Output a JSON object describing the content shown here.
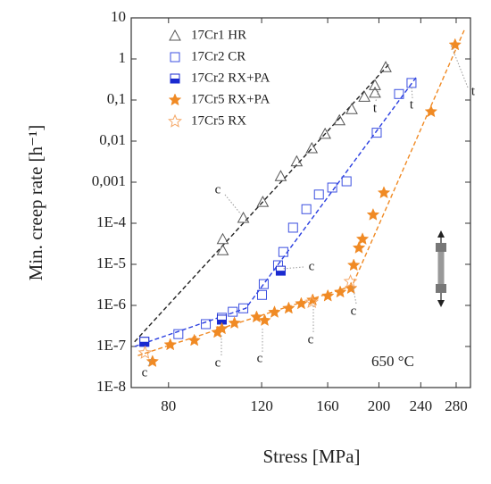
{
  "chart_data": {
    "type": "scatter",
    "x_label": "Stress [MPa]",
    "y_label": "Min. creep rate [h⁻¹]",
    "log_x": true,
    "log_y": true,
    "xlim": [
      68,
      298
    ],
    "ylim": [
      1e-08,
      10
    ],
    "xticks": [
      80,
      120,
      160,
      200,
      240,
      280
    ],
    "yticks": [
      {
        "value": 1e-08,
        "label": "1E-8"
      },
      {
        "value": 1e-07,
        "label": "1E-7"
      },
      {
        "value": 1e-06,
        "label": "1E-6"
      },
      {
        "value": 1e-05,
        "label": "1E-5"
      },
      {
        "value": 0.0001,
        "label": "1E-4"
      },
      {
        "value": 0.001,
        "label": "0,001"
      },
      {
        "value": 0.01,
        "label": "0,01"
      },
      {
        "value": 0.1,
        "label": "0,1"
      },
      1,
      10
    ],
    "legend": "upper left",
    "series": [
      {
        "name": "17Cr1 HR",
        "color": "#555555",
        "marker": "triangle",
        "x": [
          101.3,
          101.3,
          110.8,
          120.6,
          130.4,
          139.8,
          149.3,
          158.2,
          168.4,
          177.7,
          187.7,
          196.6,
          196.6,
          206
        ],
        "values": [
          4.1e-05,
          2.2e-05,
          0.000135,
          0.00033,
          0.0014,
          0.0032,
          0.0067,
          0.015,
          0.032,
          0.06,
          0.12,
          0.23,
          0.15,
          0.63
        ]
      },
      {
        "name": "17Cr2 CR",
        "color": "#3b4fe0",
        "marker": "square",
        "x": [
          72.0,
          83.5,
          94.1,
          100.9,
          105.8,
          110.8,
          120.2,
          121.1,
          128.9,
          131.9,
          137.6,
          145.8,
          154,
          163.2,
          173.7,
          198.1,
          218.3,
          230.5
        ],
        "values": [
          1.3e-07,
          2e-07,
          3.5e-07,
          5e-07,
          7e-07,
          8.5e-07,
          1.8e-06,
          3.3e-06,
          9.5e-06,
          2e-05,
          7.8e-05,
          0.00022,
          0.0005,
          0.00074,
          0.00105,
          0.016,
          0.14,
          0.26
        ]
      },
      {
        "name": "17Cr2 RX+PA",
        "color": "#1a2ad0",
        "marker": "half-square",
        "x": [
          72.0,
          100.9,
          130.4
        ],
        "values": [
          1.3e-07,
          4.5e-07,
          7e-06
        ]
      },
      {
        "name": "17Cr5 RX+PA",
        "color": "#f08a24",
        "marker": "star",
        "x": [
          74.6,
          80.6,
          89.5,
          99.0,
          100.9,
          106.6,
          117.4,
          121.6,
          126.9,
          135,
          142.6,
          149.9,
          160.1,
          169,
          177.1,
          179.2,
          183.3,
          186.2,
          195,
          204.4,
          251,
          278.7
        ],
        "values": [
          4.3e-08,
          1.1e-07,
          1.4e-07,
          2.2e-07,
          2.7e-07,
          3.7e-07,
          5.2e-07,
          4.3e-07,
          6.8e-07,
          8.5e-07,
          1.1e-06,
          1.35e-06,
          1.7e-06,
          2.1e-06,
          2.6e-06,
          9.5e-06,
          2.5e-05,
          4.1e-05,
          0.00016,
          0.00055,
          0.052,
          2.2
        ]
      },
      {
        "name": "17Cr5 RX",
        "color": "#f5a868",
        "marker": "open-star",
        "x": [
          72.2,
          149.3,
          176.7
        ],
        "values": [
          7e-08,
          1.2e-06,
          3.8e-06
        ]
      }
    ],
    "trend_lines": [
      {
        "color": "#222222",
        "x": [
          69,
          210
        ],
        "values": [
          1.3e-07,
          0.8
        ]
      },
      {
        "color": "#2a3ee0",
        "x": [
          69,
          112,
          235
        ],
        "values": [
          1e-07,
          8.5e-07,
          0.35
        ]
      },
      {
        "color": "#f08a24",
        "x": [
          70,
          178,
          290
        ],
        "values": [
          6e-08,
          3e-06,
          5
        ]
      }
    ],
    "annotations": [
      "c",
      "c",
      "c",
      "c",
      "c",
      "c",
      "c",
      "t",
      "t",
      "t",
      "650 °C"
    ]
  }
}
